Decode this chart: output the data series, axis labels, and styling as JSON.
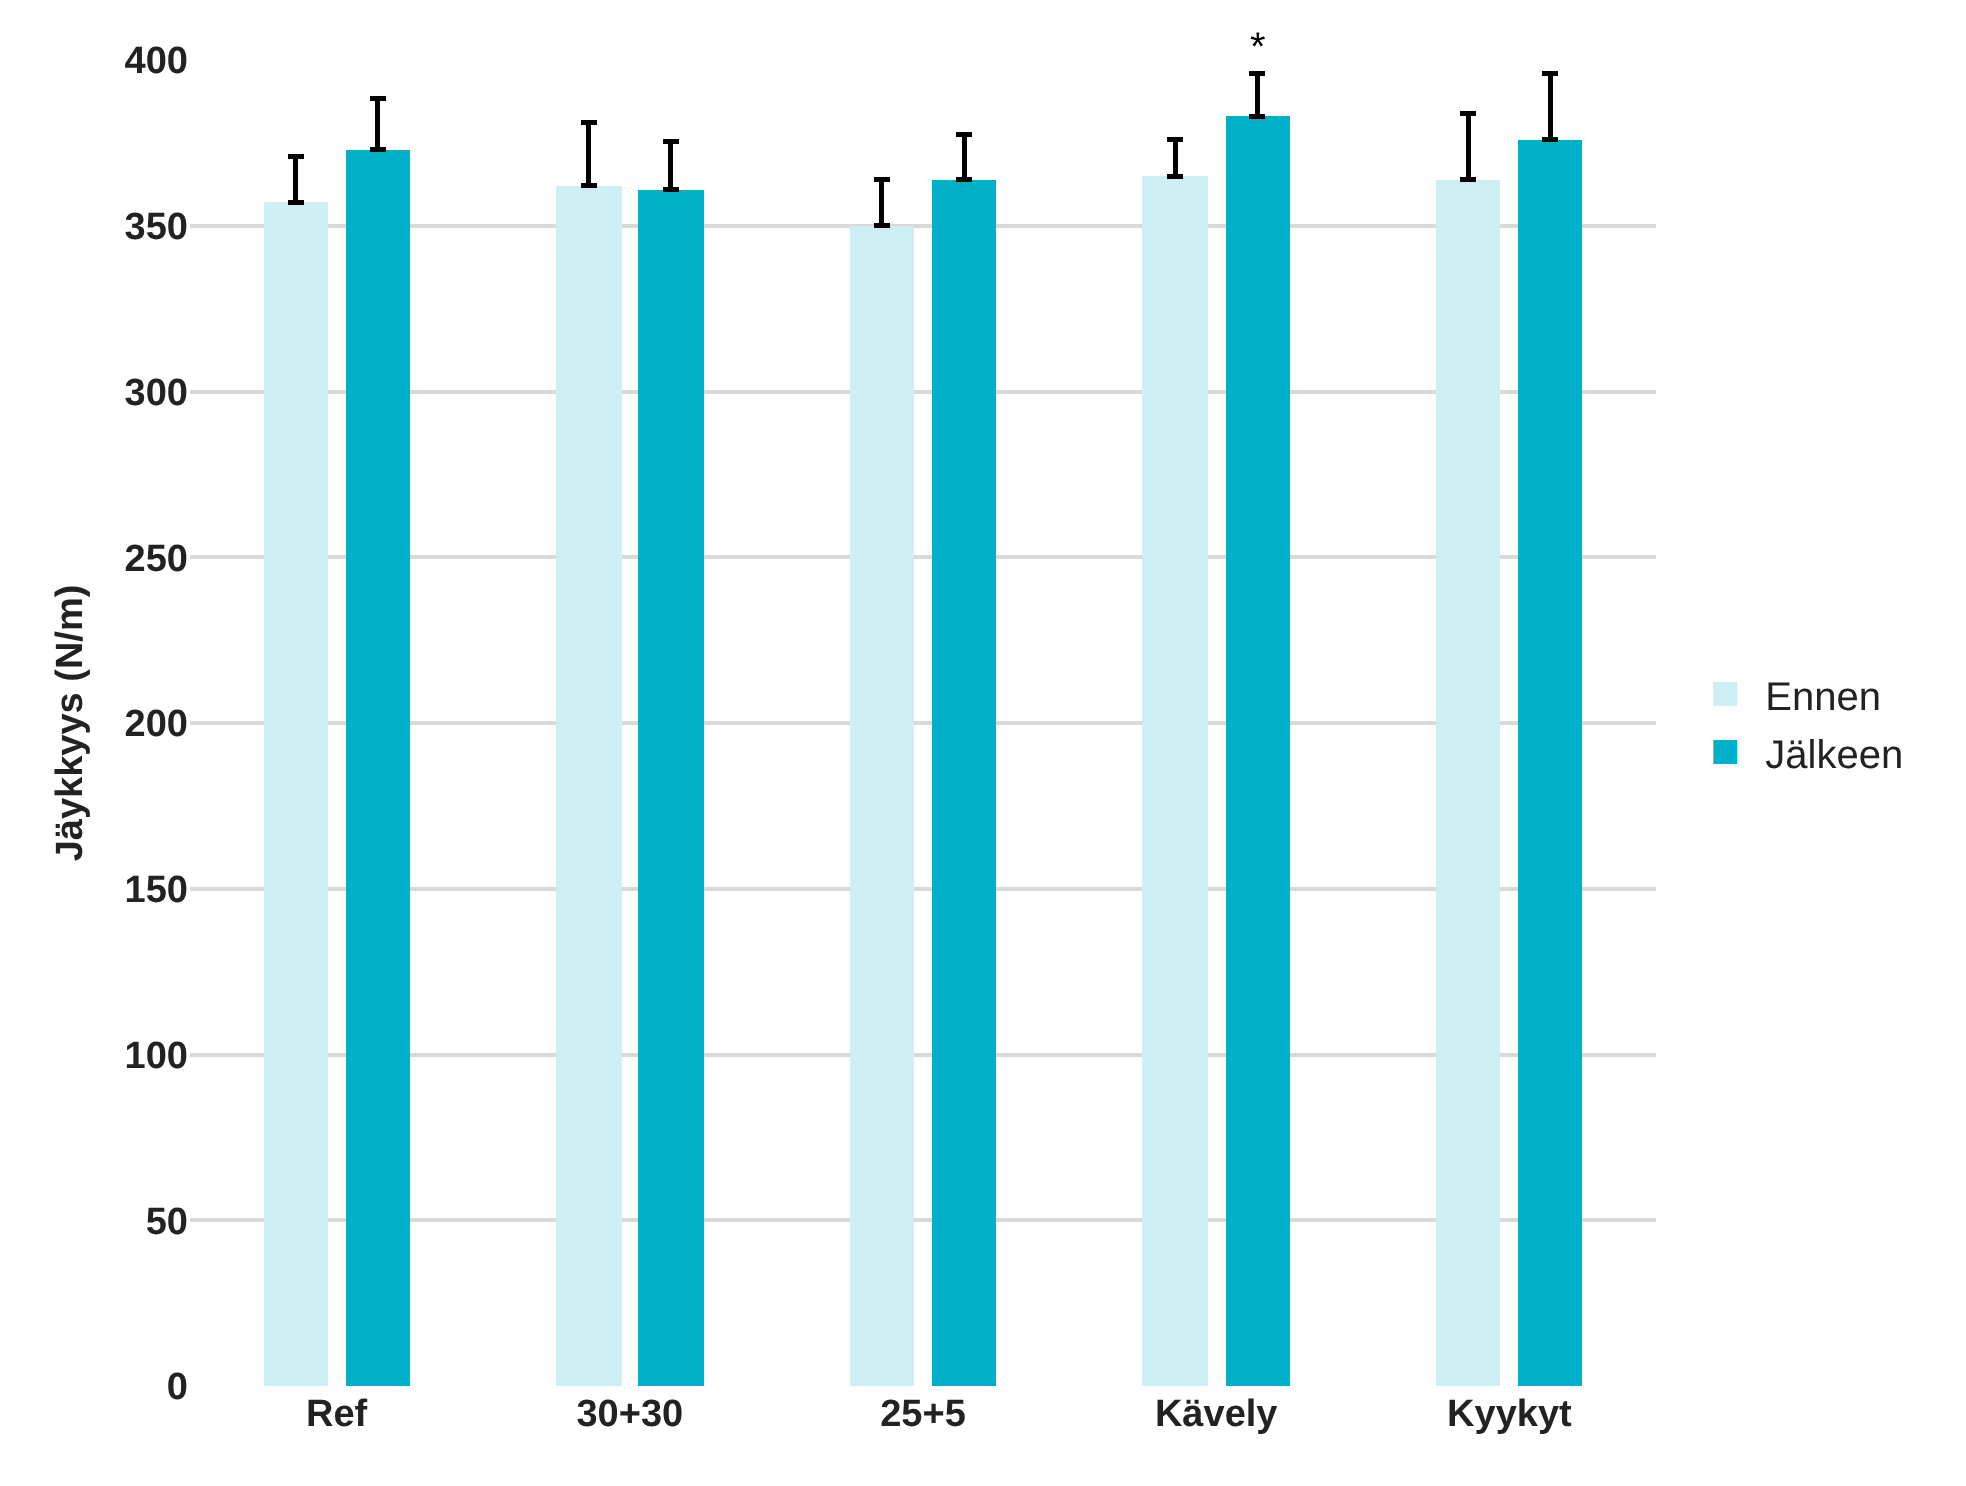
{
  "chart_data": {
    "type": "bar",
    "ylabel": "Jäykkyys (N/m)",
    "categories": [
      "Ref",
      "30+30",
      "25+5",
      "Kävely",
      "Kyykyt"
    ],
    "series": [
      {
        "name": "Ennen",
        "color": "#cdeef2",
        "values": [
          357,
          362,
          350,
          365,
          364
        ],
        "errors": [
          [
            357,
            371
          ],
          [
            362,
            381
          ],
          [
            350,
            364
          ],
          [
            365,
            376
          ],
          [
            364,
            384
          ]
        ]
      },
      {
        "name": "Jälkeen",
        "color": "#00b0c8",
        "values": [
          373,
          361,
          364,
          383,
          376
        ],
        "errors": [
          [
            373,
            388.5
          ],
          [
            361,
            375.5
          ],
          [
            364,
            377.5
          ],
          [
            383,
            396
          ],
          [
            376,
            396
          ]
        ]
      }
    ],
    "annotations": [
      {
        "text": "*",
        "x": "Kävely",
        "y": 383
      }
    ],
    "ylim": [
      0,
      400
    ],
    "yticks": [
      0,
      50,
      100,
      150,
      200,
      250,
      300,
      350,
      400
    ],
    "grid": "y",
    "legend": "right"
  }
}
